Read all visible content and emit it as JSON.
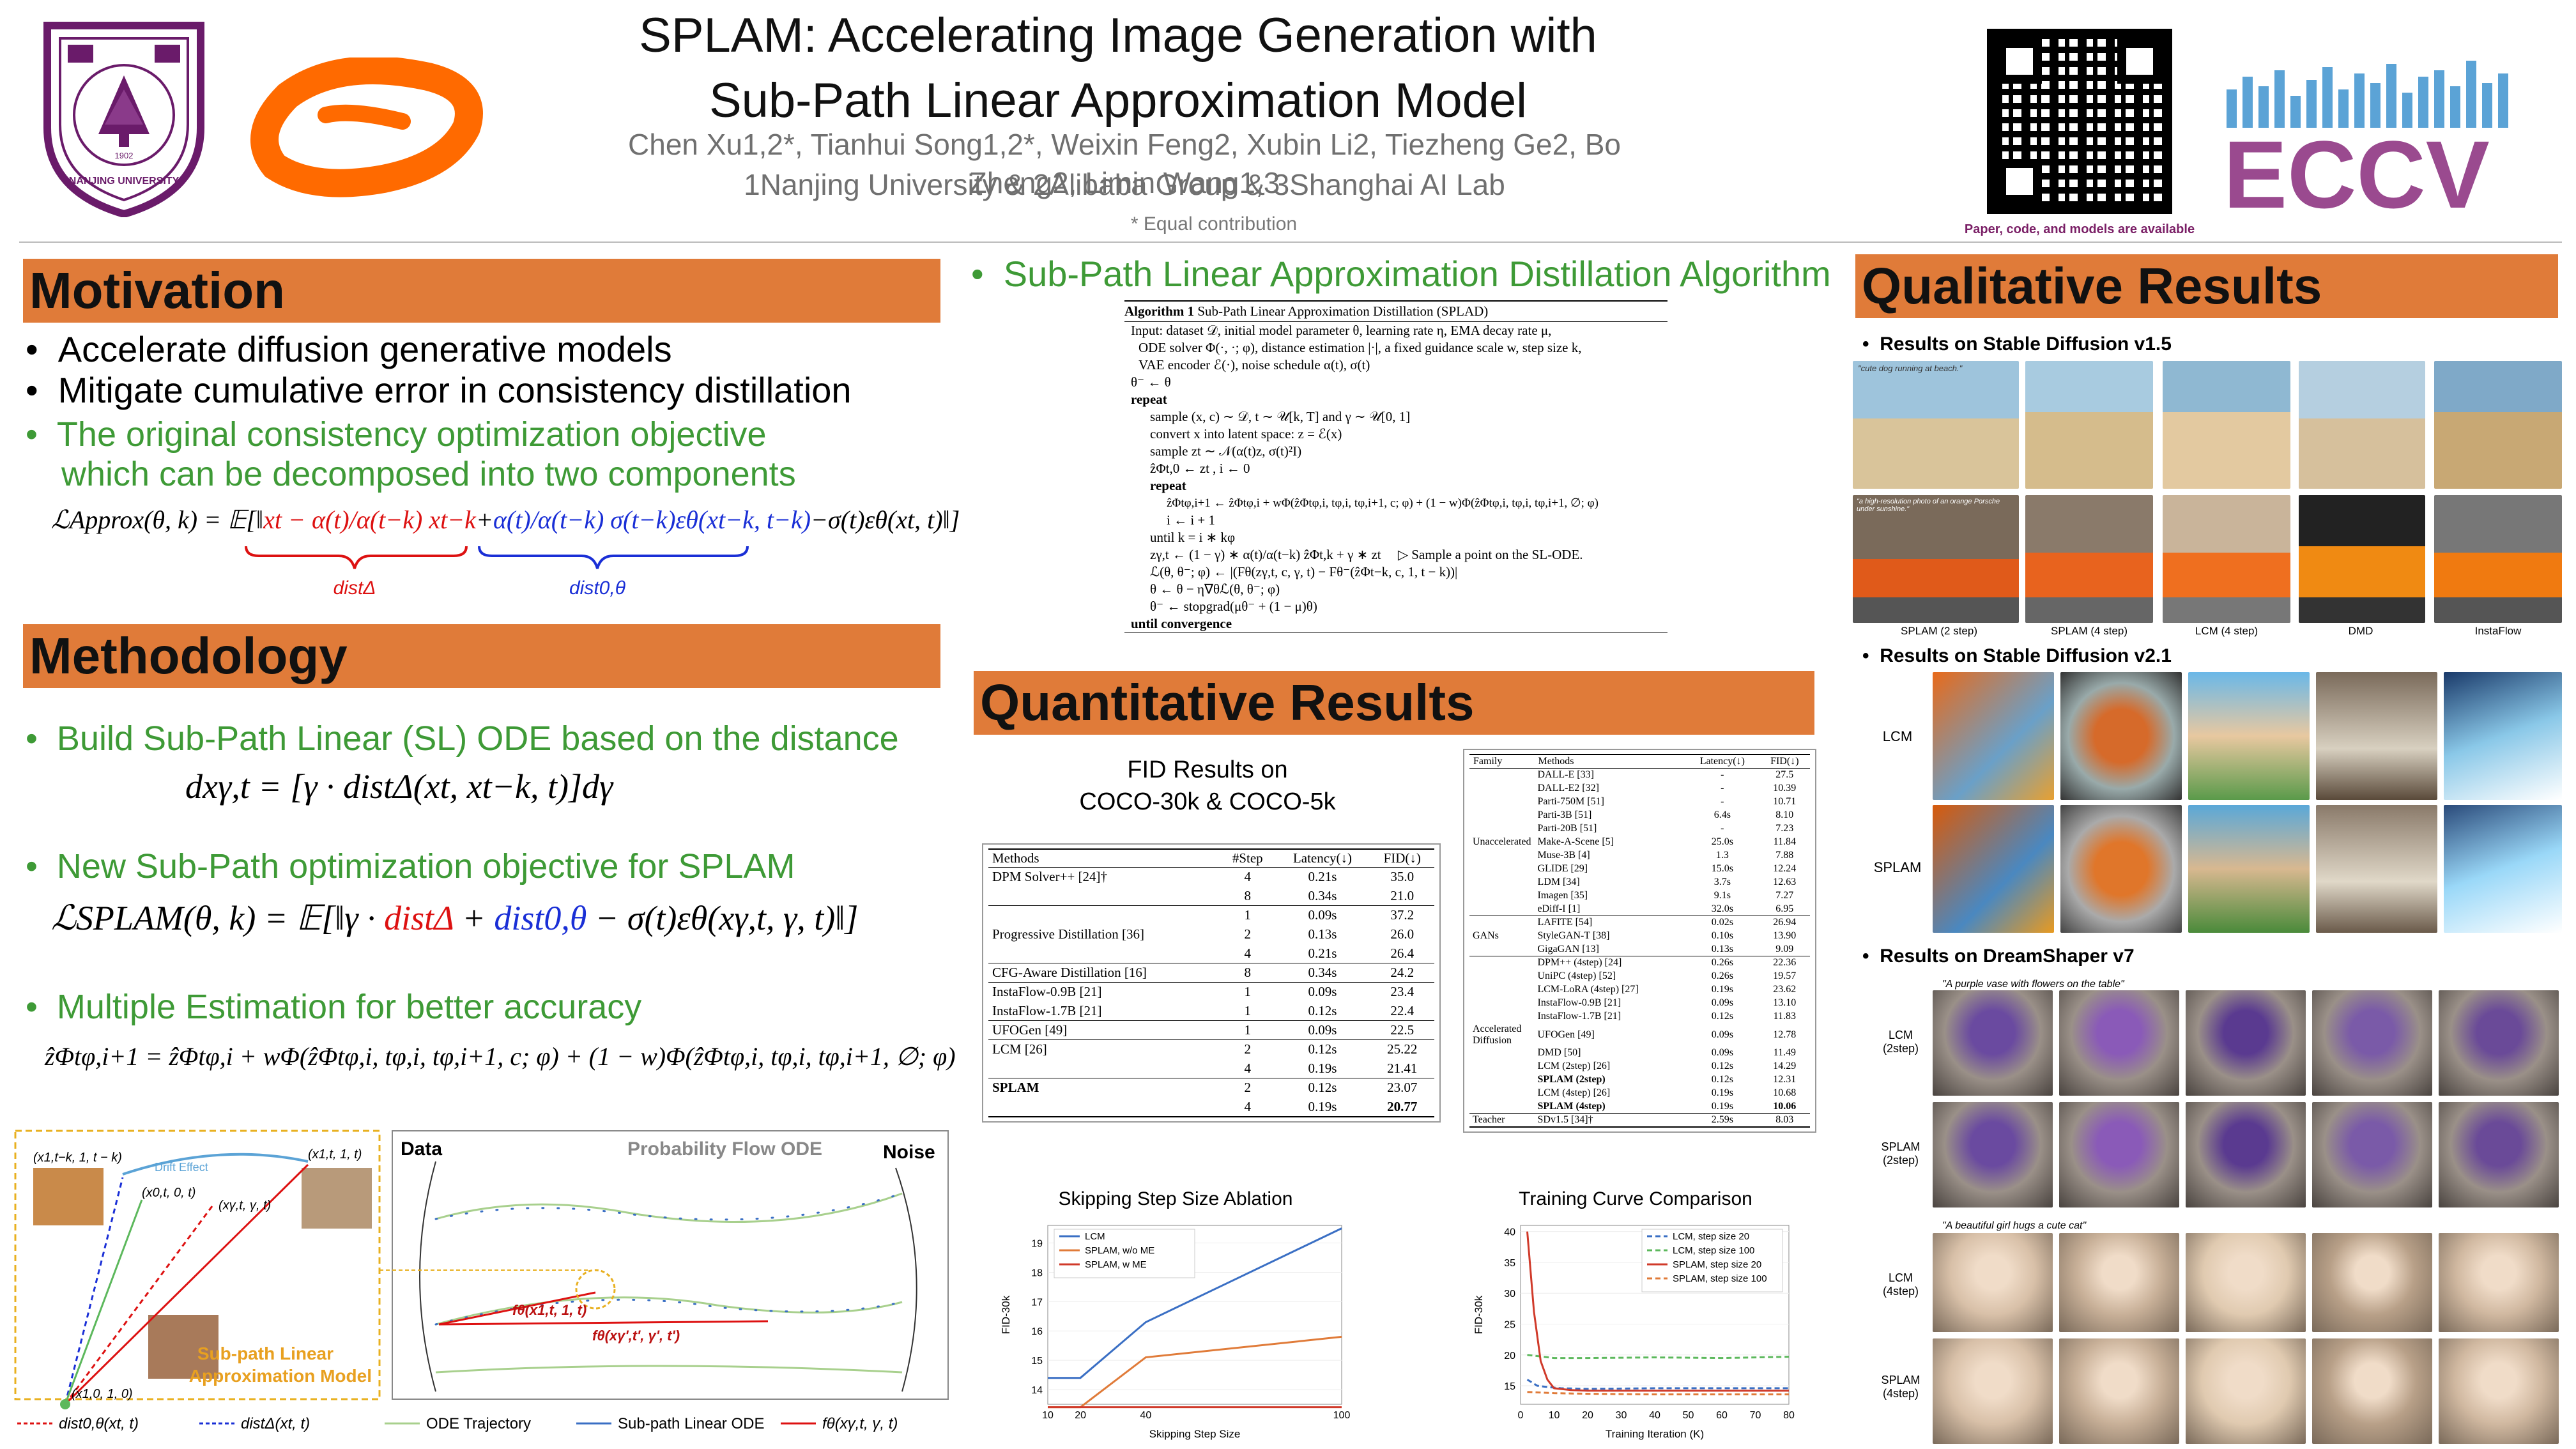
{
  "header": {
    "title_line1": "SPLAM: Accelerating Image Generation with",
    "title_line2": "Sub-Path Linear Approximation Model",
    "authors": "Chen Xu1,2*, Tianhui Song1,2*, Weixin Feng2, Xubin Li2, Tiezheng Ge2, Bo Zheng2, Limin Wang1,3",
    "affiliations": "1Nanjing University  &  2Alibaba Group &  3Shanghai AI Lab",
    "equal_contribution": "* Equal contribution",
    "qr_caption": "Paper, code, and models are available",
    "logo_nju_year": "1902",
    "logo_nju_text": "NANJING UNIVERSITY",
    "conference_logo": "ECCV"
  },
  "motivation": {
    "heading": "Motivation",
    "bullets": [
      "Accelerate diffusion generative models",
      "Mitigate cumulative error in consistency distillation"
    ],
    "green_bullet_l1": "The original consistency optimization objective",
    "green_bullet_l2": "which can be decomposed into two components",
    "formula_lhs": "ℒApprox(θ, k) = 𝔼[‖",
    "formula_mid": "xt − α(t)/α(t−k) xt−k",
    "formula_plus": "+",
    "formula_blue": "α(t)/α(t−k) σ(t−k)εθ(xt−k, t−k)",
    "formula_tail": "−σ(t)εθ(xt, t)‖]",
    "brace_red": "distΔ",
    "brace_blue": "dist0,θ"
  },
  "methodology": {
    "heading": "Methodology",
    "b1": "Build Sub-Path Linear (SL) ODE based on the distance",
    "f1": "dxγ,t = [γ · distΔ(xt, xt−k, t)]dγ",
    "b2": "New Sub-Path optimization objective for SPLAM",
    "f2_a": "ℒSPLAM(θ, k) = 𝔼[‖γ · ",
    "f2_red": "distΔ",
    "f2_plus": " + ",
    "f2_blue": "dist0,θ",
    "f2_tail": " − σ(t)εθ(xγ,t, γ, t)‖]",
    "b3": "Multiple Estimation for better accuracy",
    "f3": "ẑΦtφ,i+1 = ẑΦtφ,i + wΦ(ẑΦtφ,i, tφ,i, tφ,i+1, c; φ) + (1 − w)Φ(ẑΦtφ,i, tφ,i, tφ,i+1, ∅; φ)"
  },
  "diagram": {
    "left_labels": [
      "(x1,t−k, 1, t − k)",
      "Drift Effect",
      "(x1,t, 1, t)",
      "(x0,t, 0, t)",
      "(xγ,t, γ, t)",
      "(x1,0, 1, 0)",
      "Sub-path Linear",
      "Approximation Model"
    ],
    "right_labels": [
      "Data",
      "Probability Flow ODE",
      "Noise",
      "fθ(x1,t, 1, t)",
      "fθ(xγ',t', γ', t')"
    ],
    "legend": [
      "dist0,θ(xt, t)",
      "distΔ(xt, t)",
      "ODE Trajectory",
      "Sub-path Linear ODE",
      "fθ(xγ,t, γ, t)"
    ]
  },
  "algorithm": {
    "section_title": "Sub-Path Linear Approximation Distillation Algorithm",
    "caption_bold": "Algorithm 1",
    "caption": "Sub-Path Linear Approximation Distillation (SPLAD)",
    "lines": [
      "Input: dataset 𝒟, initial model parameter θ, learning rate η, EMA decay rate μ,",
      "ODE solver Φ(·, ·; φ), distance estimation |·|, a fixed guidance scale w, step size k,",
      "VAE encoder ℰ(·), noise schedule α(t), σ(t)",
      "θ⁻ ← θ",
      "repeat",
      "sample (x, c) ∼ 𝒟, t ∼ 𝒰[k, T] and γ ∼ 𝒰[0, 1]",
      "convert x into latent space: z = ℰ(x)",
      "sample zt ∼ 𝒩(α(t)z, σ(t)²I)",
      "ẑΦt,0 ← zt , i ← 0",
      "repeat",
      "ẑΦtφ,i+1 ← ẑΦtφ,i + wΦ(ẑΦtφ,i, tφ,i, tφ,i+1, c; φ) + (1 − w)Φ(ẑΦtφ,i, tφ,i, tφ,i+1, ∅; φ)",
      "i ← i + 1",
      "until k = i ∗ kφ",
      "zγ,t ← (1 − γ) ∗ α(t)/α(t−k) ẑΦt,k + γ ∗ zt",
      "ℒ(θ, θ⁻; φ) ← |(Fθ(zγ,t, c, γ, t) − Fθ⁻(ẑΦt−k, c, 1, t − k))|",
      "θ ← θ − η∇θℒ(θ, θ⁻; φ)",
      "θ⁻ ← stopgrad(μθ⁻ + (1 − μ)θ)",
      "until convergence"
    ],
    "comment": "▷ Sample a point on the SL-ODE."
  },
  "quantitative": {
    "heading": "Quantitative Results",
    "fid_title_l1": "FID Results on",
    "fid_title_l2": "COCO-30k & COCO-5k",
    "t1_headers": [
      "Methods",
      "#Step",
      "Latency(↓)",
      "FID(↓)"
    ],
    "t1_rows": [
      {
        "m": "DPM Solver++ [24]†",
        "s": [
          "4",
          "8"
        ],
        "l": [
          "0.21s",
          "0.34s"
        ],
        "f": [
          "35.0",
          "21.0"
        ]
      },
      {
        "m": "Progressive Distillation [36]",
        "s": [
          "1",
          "2",
          "4"
        ],
        "l": [
          "0.09s",
          "0.13s",
          "0.21s"
        ],
        "f": [
          "37.2",
          "26.0",
          "26.4"
        ]
      },
      {
        "m": "CFG-Aware Distillation [16]",
        "s": [
          "8"
        ],
        "l": [
          "0.34s"
        ],
        "f": [
          "24.2"
        ]
      },
      {
        "m": "InstaFlow-0.9B [21]|InstaFlow-1.7B [21]",
        "s": [
          "1",
          "1"
        ],
        "l": [
          "0.09s",
          "0.12s"
        ],
        "f": [
          "23.4",
          "22.4"
        ]
      },
      {
        "m": "UFOGen [49]",
        "s": [
          "1"
        ],
        "l": [
          "0.09s"
        ],
        "f": [
          "22.5"
        ]
      },
      {
        "m": "LCM [26]",
        "s": [
          "2",
          "4"
        ],
        "l": [
          "0.12s",
          "0.19s"
        ],
        "f": [
          "25.22",
          "21.41"
        ]
      },
      {
        "m": "SPLAM",
        "s": [
          "2",
          "4"
        ],
        "l": [
          "0.12s",
          "0.19s"
        ],
        "f": [
          "23.07",
          "20.77"
        ]
      }
    ],
    "t2_headers": [
      "Family",
      "Methods",
      "Latency(↓)",
      "FID(↓)"
    ],
    "t2_groups": [
      {
        "family": "Unaccelerated",
        "rows": [
          [
            "DALL-E [33]",
            "-",
            "27.5"
          ],
          [
            "DALL-E2 [32]",
            "-",
            "10.39"
          ],
          [
            "Parti-750M [51]",
            "-",
            "10.71"
          ],
          [
            "Parti-3B [51]",
            "6.4s",
            "8.10"
          ],
          [
            "Parti-20B [51]",
            "-",
            "7.23"
          ],
          [
            "Make-A-Scene [5]",
            "25.0s",
            "11.84"
          ],
          [
            "Muse-3B [4]",
            "1.3",
            "7.88"
          ],
          [
            "GLIDE [29]",
            "15.0s",
            "12.24"
          ],
          [
            "LDM [34]",
            "3.7s",
            "12.63"
          ],
          [
            "Imagen [35]",
            "9.1s",
            "7.27"
          ],
          [
            "eDiff-I [1]",
            "32.0s",
            "6.95"
          ]
        ]
      },
      {
        "family": "GANs",
        "rows": [
          [
            "LAFITE [54]",
            "0.02s",
            "26.94"
          ],
          [
            "StyleGAN-T [38]",
            "0.10s",
            "13.90"
          ],
          [
            "GigaGAN [13]",
            "0.13s",
            "9.09"
          ]
        ]
      },
      {
        "family": "Accelerated Diffusion",
        "rows": [
          [
            "DPM++ (4step) [24]",
            "0.26s",
            "22.36"
          ],
          [
            "UniPC (4step) [52]",
            "0.26s",
            "19.57"
          ],
          [
            "LCM-LoRA (4step) [27]",
            "0.19s",
            "23.62"
          ],
          [
            "InstaFlow-0.9B [21]",
            "0.09s",
            "13.10"
          ],
          [
            "InstaFlow-1.7B [21]",
            "0.12s",
            "11.83"
          ],
          [
            "UFOGen [49]",
            "0.09s",
            "12.78"
          ],
          [
            "DMD [50]",
            "0.09s",
            "11.49"
          ],
          [
            "LCM (2step) [26]",
            "0.12s",
            "14.29"
          ],
          [
            "SPLAM (2step)",
            "0.12s",
            "12.31"
          ],
          [
            "LCM (4step) [26]",
            "0.19s",
            "10.68"
          ],
          [
            "SPLAM (4step)",
            "0.19s",
            "10.06"
          ]
        ]
      },
      {
        "family": "Teacher",
        "rows": [
          [
            "SDv1.5 [34]†",
            "2.59s",
            "8.03"
          ]
        ]
      }
    ]
  },
  "chart_data": [
    {
      "type": "line",
      "title": "Skipping Step Size Ablation",
      "xlabel": "Skipping Step Size",
      "ylabel": "FID-30k",
      "x": [
        10,
        20,
        40,
        100
      ],
      "xticks": [
        10,
        20,
        40,
        100
      ],
      "yticks": [
        14,
        15,
        16,
        17,
        18,
        19
      ],
      "ylim": [
        13.5,
        19.6
      ],
      "series": [
        {
          "name": "LCM",
          "color": "#3a6fc4",
          "values": [
            14.4,
            14.4,
            16.3,
            19.5
          ]
        },
        {
          "name": "SPLAM, w/o ME",
          "color": "#e07b39",
          "values": [
            13.4,
            13.4,
            15.1,
            15.8
          ]
        },
        {
          "name": "SPLAM, w ME",
          "color": "#d03a2a",
          "values": [
            13.4,
            13.4,
            13.4,
            13.4
          ]
        }
      ],
      "legend_position": "top-left"
    },
    {
      "type": "line",
      "title": "Training Curve Comparison",
      "xlabel": "Training Iteration (K)",
      "ylabel": "FID-30k",
      "xticks": [
        0,
        10,
        20,
        30,
        40,
        50,
        60,
        70,
        80
      ],
      "yticks": [
        15,
        20,
        25,
        30,
        35,
        40
      ],
      "ylim": [
        12,
        41
      ],
      "series": [
        {
          "name": "LCM, step size 20",
          "color": "#3a6fc4",
          "dash": "8,5",
          "x": [
            2,
            5,
            8,
            12,
            20,
            40,
            60,
            80
          ],
          "values": [
            16,
            15,
            14.8,
            14.6,
            14.5,
            14.6,
            14.6,
            14.6
          ]
        },
        {
          "name": "LCM, step size 100",
          "color": "#5cb85c",
          "dash": "8,5",
          "x": [
            2,
            10,
            20,
            40,
            60,
            80
          ],
          "values": [
            20,
            19.5,
            19.5,
            19.6,
            19.5,
            19.7
          ]
        },
        {
          "name": "SPLAM, step size 20",
          "color": "#d03a2a",
          "dash": "",
          "x": [
            2,
            4,
            6,
            8,
            10,
            15,
            20,
            40,
            60,
            80
          ],
          "values": [
            40,
            27,
            19,
            16,
            14.6,
            14.3,
            14.2,
            14.2,
            14.2,
            14.2
          ]
        },
        {
          "name": "SPLAM, step size 100",
          "color": "#e07b39",
          "dash": "8,5",
          "x": [
            2,
            10,
            20,
            40,
            60,
            80
          ],
          "values": [
            14,
            13.8,
            13.7,
            13.6,
            13.6,
            13.6
          ]
        }
      ],
      "legend_position": "top-right"
    }
  ],
  "qualitative": {
    "heading": "Qualitative Results",
    "sd15_title": "Results on Stable Diffusion v1.5",
    "sd15_prompt1": "\"cute dog running at beach.\"",
    "sd15_prompt2": "\"a high-resolution photo of an orange Porsche under sunshine.\"",
    "sd15_labels": [
      "SPLAM (2 step)",
      "SPLAM (4 step)",
      "LCM (4 step)",
      "DMD",
      "InstaFlow"
    ],
    "sd21_title": "Results on Stable Diffusion v2.1",
    "sd21_rows": [
      "LCM",
      "SPLAM"
    ],
    "ds_title": "Results on DreamShaper v7",
    "ds_prompt1": "\"A purple vase with flowers on the table\"",
    "ds_prompt2": "\"A beautiful girl hugs a cute cat\"",
    "ds_rows": [
      "LCM (2step)",
      "SPLAM (2step)",
      "LCM (4step)",
      "SPLAM (4step)"
    ]
  }
}
